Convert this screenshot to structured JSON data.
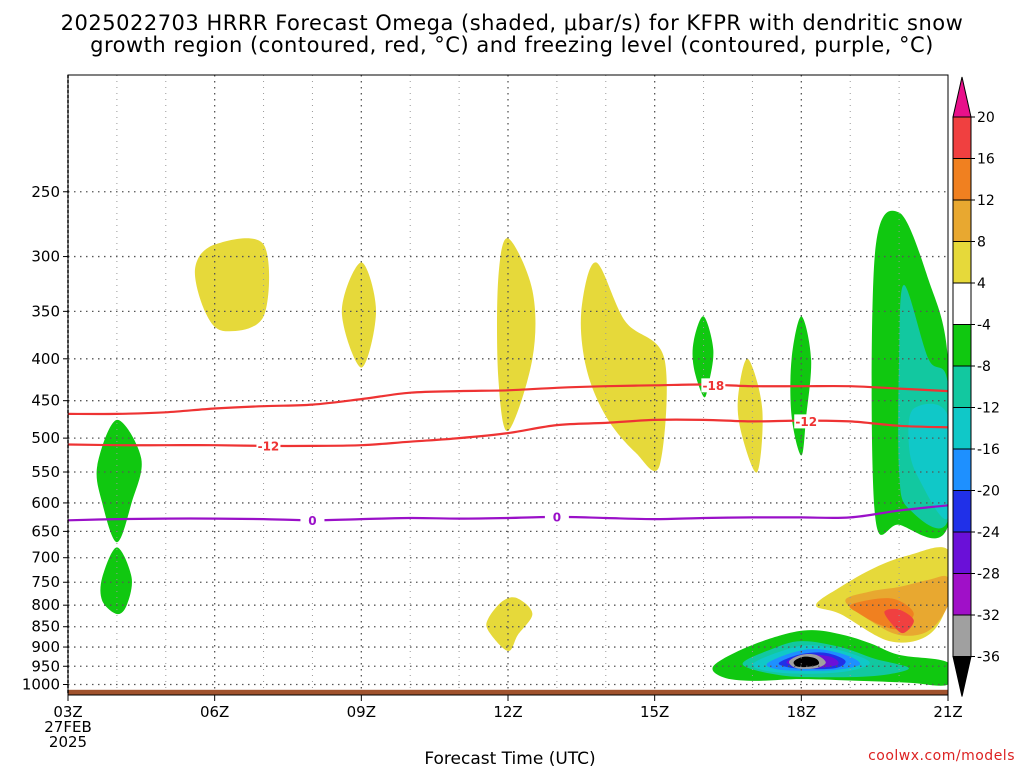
{
  "title": {
    "line1": "2025022703 HRRR Forecast Omega (shaded, μbar/s) for KFPR with dendritic snow",
    "line2": "growth region (contoured, red, °C) and freezing level (contoured, purple, °C)"
  },
  "credit": "coolwx.com/models",
  "colors": {
    "yellow": "#e6d93a",
    "green": "#10c810",
    "teal": "#12c8a0",
    "cyan": "#10c8c8",
    "blue": "#1e90ff",
    "darkblue": "#2030e8",
    "purple": "#8a10c8",
    "gray": "#a0a0a0",
    "black": "#000000",
    "orange_light": "#e8a830",
    "orange": "#f08020",
    "red": "#f04040",
    "contour_red": "#ee3333",
    "contour_purple": "#9a10c8",
    "ground": "#a0522d"
  },
  "chart_data": {
    "type": "heatmap",
    "xlabel": "Forecast Time (UTC)",
    "ylabel": "",
    "x_start_label": [
      "03Z",
      "27FEB",
      "2025"
    ],
    "x_ticks": [
      {
        "hour": 3,
        "label": "03Z"
      },
      {
        "hour": 6,
        "label": "06Z"
      },
      {
        "hour": 9,
        "label": "09Z"
      },
      {
        "hour": 12,
        "label": "12Z"
      },
      {
        "hour": 15,
        "label": "15Z"
      },
      {
        "hour": 18,
        "label": "18Z"
      },
      {
        "hour": 21,
        "label": "21Z"
      }
    ],
    "xlim": [
      3,
      21
    ],
    "y_scale": "log-pressure",
    "ylim_hpa": [
      1030,
      180
    ],
    "y_ticks": [
      250,
      300,
      350,
      400,
      450,
      500,
      550,
      600,
      650,
      700,
      750,
      800,
      850,
      900,
      950,
      1000
    ],
    "grid": true,
    "colorbar": {
      "label_unit": "μbar/s",
      "tick_labels": [
        "20",
        "16",
        "12",
        "8",
        "4",
        "-4",
        "-8",
        "-12",
        "-16",
        "-20",
        "-24",
        "-28",
        "-32",
        "-36"
      ],
      "bins": [
        {
          "range": ">20",
          "color": "#e8108a"
        },
        {
          "range": "16 to 20",
          "color": "#f04040"
        },
        {
          "range": "12 to 16",
          "color": "#f08020"
        },
        {
          "range": "8 to 12",
          "color": "#e8a830"
        },
        {
          "range": "4 to 8",
          "color": "#e6d93a"
        },
        {
          "range": "-4 to 4",
          "color": "#ffffff"
        },
        {
          "range": "-8 to -4",
          "color": "#10c810"
        },
        {
          "range": "-12 to -8",
          "color": "#12c8a0"
        },
        {
          "range": "-16 to -12",
          "color": "#10c8c8"
        },
        {
          "range": "-20 to -16",
          "color": "#1e90ff"
        },
        {
          "range": "-24 to -20",
          "color": "#2030e8"
        },
        {
          "range": "-28 to -24",
          "color": "#6a10d8"
        },
        {
          "range": "-32 to -28",
          "color": "#a010c8"
        },
        {
          "range": "-36 to -32",
          "color": "#a0a0a0"
        },
        {
          "range": "<-36",
          "color": "#000000"
        }
      ]
    },
    "contours": [
      {
        "label": "-18",
        "color": "#ee3333",
        "points": [
          [
            3,
            467
          ],
          [
            4,
            467
          ],
          [
            5,
            465
          ],
          [
            6,
            460
          ],
          [
            7,
            457
          ],
          [
            8,
            455
          ],
          [
            9,
            448
          ],
          [
            10,
            440
          ],
          [
            11,
            438
          ],
          [
            12,
            437
          ],
          [
            13,
            434
          ],
          [
            14,
            432
          ],
          [
            15,
            431
          ],
          [
            16,
            430
          ],
          [
            17,
            432
          ],
          [
            18,
            432
          ],
          [
            19,
            432
          ],
          [
            20,
            435
          ],
          [
            21,
            438
          ]
        ],
        "label_at": [
          16.2,
          431
        ]
      },
      {
        "label": "-12",
        "color": "#ee3333",
        "points": [
          [
            3,
            509
          ],
          [
            4,
            510
          ],
          [
            5,
            510
          ],
          [
            6,
            510
          ],
          [
            7,
            511
          ],
          [
            8,
            511
          ],
          [
            9,
            510
          ],
          [
            10,
            505
          ],
          [
            11,
            500
          ],
          [
            12,
            493
          ],
          [
            13,
            482
          ],
          [
            14,
            479
          ],
          [
            15,
            475
          ],
          [
            16,
            475
          ],
          [
            17,
            477
          ],
          [
            18,
            476
          ],
          [
            19,
            477
          ],
          [
            20,
            483
          ],
          [
            21,
            485
          ]
        ],
        "label_at": [
          7.1,
          511
        ],
        "label_at2": [
          18.1,
          477
        ]
      },
      {
        "label": "0",
        "color": "#9a10c8",
        "points": [
          [
            3,
            630
          ],
          [
            4,
            628
          ],
          [
            5,
            627
          ],
          [
            6,
            627
          ],
          [
            7,
            628
          ],
          [
            8,
            630
          ],
          [
            9,
            628
          ],
          [
            10,
            626
          ],
          [
            11,
            627
          ],
          [
            12,
            626
          ],
          [
            13,
            624
          ],
          [
            14,
            626
          ],
          [
            15,
            628
          ],
          [
            16,
            626
          ],
          [
            17,
            625
          ],
          [
            18,
            625
          ],
          [
            19,
            625
          ],
          [
            20,
            613
          ],
          [
            21,
            604
          ]
        ],
        "label_at": [
          8.0,
          630
        ],
        "label_at2": [
          13.0,
          624
        ]
      }
    ],
    "shaded_regions": [
      {
        "value": "4 to 8",
        "color": "#e6d93a",
        "points": [
          [
            5.6,
            310
          ],
          [
            6.0,
            290
          ],
          [
            7.0,
            290
          ],
          [
            7.0,
            355
          ],
          [
            6.2,
            370
          ],
          [
            5.8,
            350
          ]
        ]
      },
      {
        "value": "4 to 8",
        "color": "#e6d93a",
        "points": [
          [
            9.0,
            305
          ],
          [
            9.3,
            350
          ],
          [
            9.0,
            410
          ],
          [
            8.6,
            350
          ]
        ]
      },
      {
        "value": "4 to 8",
        "color": "#e6d93a",
        "points": [
          [
            12.0,
            285
          ],
          [
            12.5,
            330
          ],
          [
            12.5,
            400
          ],
          [
            12.0,
            490
          ],
          [
            11.8,
            420
          ],
          [
            11.8,
            320
          ]
        ]
      },
      {
        "value": "4 to 8",
        "color": "#e6d93a",
        "points": [
          [
            13.8,
            305
          ],
          [
            14.4,
            360
          ],
          [
            15.2,
            400
          ],
          [
            15.1,
            540
          ],
          [
            14.6,
            520
          ],
          [
            14.0,
            470
          ],
          [
            13.6,
            410
          ],
          [
            13.5,
            350
          ]
        ]
      },
      {
        "value": "4 to 8",
        "color": "#e6d93a",
        "points": [
          [
            16.9,
            400
          ],
          [
            17.2,
            460
          ],
          [
            17.1,
            550
          ],
          [
            16.8,
            500
          ],
          [
            16.7,
            450
          ]
        ]
      },
      {
        "value": "4 to 8",
        "color": "#e6d93a",
        "points": [
          [
            11.6,
            830
          ],
          [
            11.9,
            790
          ],
          [
            12.2,
            785
          ],
          [
            12.5,
            820
          ],
          [
            12.2,
            870
          ],
          [
            12.0,
            910
          ],
          [
            11.6,
            860
          ]
        ]
      },
      {
        "value": "4 to 8",
        "color": "#e6d93a",
        "points": [
          [
            18.3,
            800
          ],
          [
            18.8,
            760
          ],
          [
            19.5,
            720
          ],
          [
            20.2,
            695
          ],
          [
            21.0,
            685
          ],
          [
            21.0,
            790
          ],
          [
            20.6,
            870
          ],
          [
            19.8,
            885
          ],
          [
            18.8,
            820
          ]
        ]
      },
      {
        "value": "8 to 12",
        "color": "#e8a830",
        "points": [
          [
            18.9,
            790
          ],
          [
            19.4,
            770
          ],
          [
            20.0,
            760
          ],
          [
            20.6,
            745
          ],
          [
            21.0,
            740
          ],
          [
            21.0,
            800
          ],
          [
            20.6,
            860
          ],
          [
            20.0,
            870
          ],
          [
            19.4,
            835
          ]
        ]
      },
      {
        "value": "12 to 16",
        "color": "#f08020",
        "points": [
          [
            19.0,
            800
          ],
          [
            19.6,
            785
          ],
          [
            20.0,
            790
          ],
          [
            20.3,
            820
          ],
          [
            20.0,
            855
          ],
          [
            19.6,
            845
          ],
          [
            19.2,
            820
          ]
        ]
      },
      {
        "value": "16 to 20",
        "color": "#f04040",
        "points": [
          [
            19.7,
            815
          ],
          [
            20.0,
            810
          ],
          [
            20.3,
            835
          ],
          [
            20.1,
            865
          ],
          [
            19.9,
            850
          ]
        ]
      },
      {
        "value": "-8 to -4",
        "color": "#10c810",
        "points": [
          [
            4.0,
            475
          ],
          [
            4.5,
            530
          ],
          [
            4.3,
            600
          ],
          [
            4.0,
            670
          ],
          [
            3.7,
            600
          ],
          [
            3.6,
            540
          ]
        ]
      },
      {
        "value": "-8 to -4",
        "color": "#10c810",
        "points": [
          [
            4.0,
            680
          ],
          [
            4.3,
            740
          ],
          [
            4.2,
            800
          ],
          [
            4.0,
            820
          ],
          [
            3.7,
            790
          ],
          [
            3.7,
            740
          ]
        ]
      },
      {
        "value": "-8 to -4",
        "color": "#10c810",
        "points": [
          [
            16.0,
            355
          ],
          [
            16.2,
            390
          ],
          [
            16.1,
            430
          ],
          [
            16.0,
            445
          ],
          [
            15.8,
            410
          ],
          [
            15.8,
            380
          ]
        ]
      },
      {
        "value": "-8 to -4",
        "color": "#10c810",
        "points": [
          [
            18.0,
            355
          ],
          [
            18.2,
            400
          ],
          [
            18.1,
            470
          ],
          [
            18.0,
            525
          ],
          [
            17.8,
            470
          ],
          [
            17.8,
            400
          ]
        ]
      },
      {
        "value": "-8 to -4",
        "color": "#10c810",
        "points": [
          [
            20.0,
            265
          ],
          [
            20.6,
            320
          ],
          [
            21.0,
            400
          ],
          [
            21.0,
            640
          ],
          [
            20.0,
            638
          ],
          [
            19.5,
            615
          ],
          [
            19.5,
            300
          ]
        ]
      },
      {
        "value": "-12 to -8",
        "color": "#12c8a0",
        "points": [
          [
            20.1,
            325
          ],
          [
            20.6,
            400
          ],
          [
            21.0,
            430
          ],
          [
            21.0,
            630
          ],
          [
            20.2,
            610
          ],
          [
            20.0,
            550
          ],
          [
            20.0,
            400
          ]
        ]
      },
      {
        "value": "-16 to -12",
        "color": "#10c8c8",
        "points": [
          [
            20.3,
            460
          ],
          [
            21.0,
            470
          ],
          [
            21.0,
            625
          ],
          [
            20.4,
            560
          ],
          [
            20.2,
            510
          ]
        ]
      },
      {
        "value": "-8 to -4",
        "color": "#10c810",
        "points": [
          [
            16.2,
            950
          ],
          [
            16.8,
            905
          ],
          [
            17.6,
            870
          ],
          [
            18.2,
            858
          ],
          [
            18.8,
            868
          ],
          [
            19.4,
            890
          ],
          [
            20.0,
            920
          ],
          [
            21.0,
            940
          ],
          [
            21.0,
            1000
          ],
          [
            20.2,
            995
          ],
          [
            19.2,
            990
          ],
          [
            18.0,
            985
          ],
          [
            17.0,
            990
          ],
          [
            16.4,
            980
          ]
        ]
      },
      {
        "value": "-12 to -8",
        "color": "#12c8a0",
        "points": [
          [
            16.8,
            945
          ],
          [
            17.4,
            905
          ],
          [
            18.0,
            885
          ],
          [
            18.8,
            900
          ],
          [
            19.5,
            930
          ],
          [
            20.2,
            955
          ],
          [
            19.6,
            975
          ],
          [
            18.6,
            980
          ],
          [
            17.6,
            975
          ]
        ]
      },
      {
        "value": "-16 to -12",
        "color": "#10c8c8",
        "points": [
          [
            17.0,
            945
          ],
          [
            17.6,
            910
          ],
          [
            18.2,
            895
          ],
          [
            18.9,
            912
          ],
          [
            19.4,
            940
          ],
          [
            19.0,
            962
          ],
          [
            18.2,
            970
          ],
          [
            17.4,
            965
          ]
        ]
      },
      {
        "value": "-20 to -16",
        "color": "#1e90ff",
        "points": [
          [
            17.3,
            943
          ],
          [
            17.8,
            915
          ],
          [
            18.3,
            905
          ],
          [
            18.9,
            920
          ],
          [
            19.2,
            945
          ],
          [
            18.7,
            960
          ],
          [
            18.0,
            962
          ],
          [
            17.5,
            958
          ]
        ]
      },
      {
        "value": "-24 to -20",
        "color": "#2030e8",
        "points": [
          [
            17.55,
            940
          ],
          [
            18.0,
            918
          ],
          [
            18.5,
            915
          ],
          [
            18.9,
            935
          ],
          [
            18.7,
            955
          ],
          [
            18.1,
            957
          ],
          [
            17.7,
            952
          ]
        ]
      },
      {
        "value": "-28 to -24",
        "color": "#6a10d8",
        "points": [
          [
            17.7,
            938
          ],
          [
            18.1,
            920
          ],
          [
            18.6,
            925
          ],
          [
            18.75,
            945
          ],
          [
            18.3,
            955
          ],
          [
            17.9,
            950
          ]
        ]
      },
      {
        "value": "-36 to -32",
        "color": "#a0a0a0",
        "points": [
          [
            17.75,
            937
          ],
          [
            18.0,
            920
          ],
          [
            18.3,
            920
          ],
          [
            18.5,
            940
          ],
          [
            18.3,
            955
          ],
          [
            17.9,
            955
          ]
        ]
      },
      {
        "value": "<-36",
        "color": "#000000",
        "points": [
          [
            17.85,
            937
          ],
          [
            18.05,
            925
          ],
          [
            18.3,
            930
          ],
          [
            18.35,
            945
          ],
          [
            18.1,
            952
          ],
          [
            17.9,
            950
          ]
        ]
      }
    ],
    "ground_top_hpa": 1015
  }
}
